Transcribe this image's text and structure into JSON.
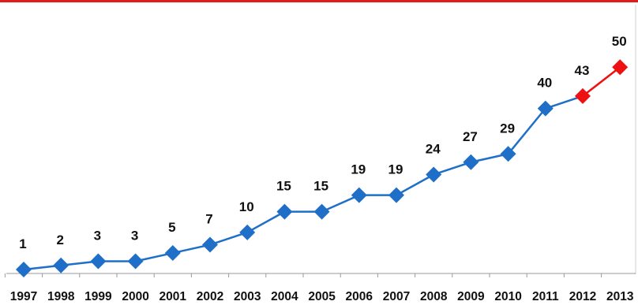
{
  "colors": {
    "border_top": "#e21b1b",
    "series_line": "#1f6fc9",
    "marker": "#1f6fc9",
    "highlight_marker": "#ee1111",
    "highlight_line": "#ee1111",
    "axis": "#9a9a9a",
    "frame": "#cfcfcf"
  },
  "chart_data": {
    "type": "line",
    "title": "",
    "xlabel": "",
    "ylabel": "",
    "grid": false,
    "legend": "none",
    "x": [
      "1997",
      "1998",
      "1999",
      "2000",
      "2001",
      "2002",
      "2003",
      "2004",
      "2005",
      "2006",
      "2007",
      "2008",
      "2009",
      "2010",
      "2011",
      "2012",
      "2013"
    ],
    "series": [
      {
        "values": [
          1,
          2,
          3,
          3,
          5,
          7,
          10,
          15,
          15,
          19,
          19,
          24,
          27,
          29,
          40,
          43,
          50
        ],
        "data_labels": [
          "1",
          "2",
          "3",
          "3",
          "5",
          "7",
          "10",
          "15",
          "15",
          "19",
          "19",
          "24",
          "27",
          "29",
          "40",
          "43",
          "50"
        ],
        "highlight_from_index": 15
      }
    ],
    "ylim": [
      0,
      52
    ]
  }
}
